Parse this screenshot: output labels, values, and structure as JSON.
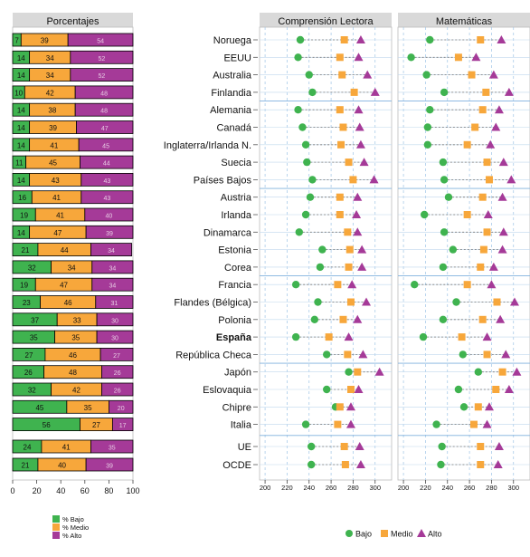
{
  "chart_data": [
    {
      "type": "bar",
      "title": "Porcentajes",
      "subtype": "stacked-horizontal-percent",
      "xlim": [
        0,
        100
      ],
      "x_ticks": [
        0,
        20,
        40,
        60,
        80,
        100
      ],
      "categories": [
        "Noruega",
        "EEUU",
        "Australia",
        "Finlandia",
        "Alemania",
        "Canadá",
        "Inglaterra/Irlanda N.",
        "Suecia",
        "Países Bajos",
        "Austria",
        "Irlanda",
        "Dinamarca",
        "Estonia",
        "Corea",
        "Francia",
        "Flandes (Bélgica)",
        "Polonia",
        "España",
        "República Checa",
        "Japón",
        "Eslovaquia",
        "Chipre",
        "Italia",
        "UE",
        "OCDE"
      ],
      "series": [
        {
          "name": "% Bajo",
          "color": "#3fb34f",
          "values": [
            7,
            14,
            14,
            10,
            14,
            14,
            14,
            11,
            14,
            16,
            19,
            14,
            21,
            32,
            19,
            23,
            37,
            35,
            27,
            26,
            32,
            45,
            56,
            24,
            21
          ]
        },
        {
          "name": "% Medio",
          "color": "#f7a73b",
          "values": [
            39,
            34,
            34,
            42,
            38,
            39,
            41,
            45,
            43,
            41,
            41,
            47,
            44,
            34,
            47,
            46,
            33,
            35,
            46,
            48,
            42,
            35,
            27,
            41,
            40
          ]
        },
        {
          "name": "% Alto",
          "color": "#a53a98",
          "values": [
            54,
            52,
            52,
            48,
            48,
            47,
            45,
            44,
            43,
            43,
            40,
            39,
            34,
            34,
            34,
            31,
            30,
            30,
            27,
            26,
            26,
            20,
            17,
            35,
            39
          ]
        }
      ],
      "legend": {
        "position": "bottom-left",
        "entries": [
          "% Bajo",
          "% Medio",
          "% Alto"
        ]
      }
    },
    {
      "type": "scatter",
      "title": "Comprensión Lectora",
      "xlim": [
        195,
        315
      ],
      "x_ticks": [
        200,
        220,
        240,
        260,
        280,
        300
      ],
      "categories": [
        "Noruega",
        "EEUU",
        "Australia",
        "Finlandia",
        "Alemania",
        "Canadá",
        "Inglaterra/Irlanda N.",
        "Suecia",
        "Países Bajos",
        "Austria",
        "Irlanda",
        "Dinamarca",
        "Estonia",
        "Corea",
        "Francia",
        "Flandes (Bélgica)",
        "Polonia",
        "España",
        "República Checa",
        "Japón",
        "Eslovaquia",
        "Chipre",
        "Italia",
        "UE",
        "OCDE"
      ],
      "series": [
        {
          "name": "Bajo",
          "color": "#3fb34f",
          "marker": "circle",
          "values": [
            232,
            230,
            240,
            243,
            230,
            234,
            237,
            238,
            243,
            241,
            237,
            231,
            252,
            250,
            228,
            248,
            245,
            228,
            256,
            276,
            256,
            264,
            237,
            242,
            242
          ]
        },
        {
          "name": "Medio",
          "color": "#f7a73b",
          "marker": "square",
          "values": [
            272,
            268,
            270,
            281,
            268,
            271,
            269,
            276,
            280,
            268,
            268,
            275,
            277,
            276,
            266,
            278,
            271,
            258,
            275,
            284,
            278,
            268,
            266,
            272,
            273
          ]
        },
        {
          "name": "Alto",
          "color": "#a53a98",
          "marker": "triangle",
          "values": [
            287,
            285,
            293,
            300,
            285,
            286,
            287,
            290,
            299,
            284,
            283,
            284,
            288,
            288,
            279,
            292,
            284,
            276,
            289,
            304,
            285,
            278,
            278,
            286,
            287
          ]
        }
      ]
    },
    {
      "type": "scatter",
      "title": "Matemáticas",
      "xlim": [
        195,
        315
      ],
      "x_ticks": [
        200,
        220,
        240,
        260,
        280,
        300
      ],
      "categories": [
        "Noruega",
        "EEUU",
        "Australia",
        "Finlandia",
        "Alemania",
        "Canadá",
        "Inglaterra/Irlanda N.",
        "Suecia",
        "Países Bajos",
        "Austria",
        "Irlanda",
        "Dinamarca",
        "Estonia",
        "Corea",
        "Francia",
        "Flandes (Bélgica)",
        "Polonia",
        "España",
        "República Checa",
        "Japón",
        "Eslovaquia",
        "Chipre",
        "Italia",
        "UE",
        "OCDE"
      ],
      "series": [
        {
          "name": "Bajo",
          "color": "#3fb34f",
          "marker": "circle",
          "values": [
            224,
            207,
            221,
            237,
            224,
            222,
            222,
            236,
            237,
            241,
            219,
            237,
            245,
            236,
            210,
            248,
            236,
            218,
            254,
            268,
            250,
            255,
            230,
            235,
            234
          ]
        },
        {
          "name": "Medio",
          "color": "#f7a73b",
          "marker": "square",
          "values": [
            270,
            250,
            262,
            275,
            272,
            265,
            258,
            276,
            278,
            272,
            258,
            276,
            273,
            270,
            258,
            285,
            272,
            253,
            276,
            290,
            284,
            268,
            264,
            270,
            270
          ]
        },
        {
          "name": "Alto",
          "color": "#a53a98",
          "marker": "triangle",
          "values": [
            289,
            266,
            282,
            296,
            287,
            284,
            279,
            291,
            298,
            290,
            277,
            291,
            290,
            282,
            280,
            301,
            288,
            276,
            293,
            303,
            296,
            278,
            276,
            287,
            286
          ]
        }
      ],
      "legend": {
        "position": "bottom-center",
        "entries": [
          "Bajo",
          "Medio",
          "Alto"
        ]
      }
    }
  ]
}
